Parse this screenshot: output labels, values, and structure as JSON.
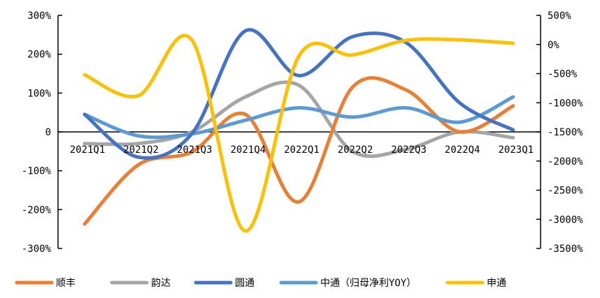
{
  "chart_data": {
    "type": "line",
    "categories": [
      "2021Q1",
      "2021Q2",
      "2021Q3",
      "2021Q4",
      "2022Q1",
      "2022Q2",
      "2022Q3",
      "2022Q4",
      "2023Q1"
    ],
    "left_axis": {
      "ylim": [
        -300,
        300
      ],
      "ticks": [
        300,
        200,
        100,
        0,
        -100,
        -200,
        -300
      ],
      "tick_labels": [
        "300%",
        "200%",
        "100%",
        "0",
        "-100%",
        "-200%",
        "-300%"
      ]
    },
    "right_axis": {
      "ylim": [
        -3500,
        500
      ],
      "ticks": [
        500,
        0,
        -500,
        -1000,
        -1500,
        -2000,
        -2500,
        -3000,
        -3500
      ],
      "tick_labels": [
        "500%",
        "0%",
        "-500%",
        "-1000%",
        "-1500%",
        "-2000%",
        "-2500%",
        "-3000%",
        "-3500%"
      ]
    },
    "series": [
      {
        "name": "顺丰",
        "axis": "left",
        "color": "#ED7D31",
        "values": [
          -237,
          -85,
          -52,
          45,
          -180,
          115,
          108,
          0,
          67
        ]
      },
      {
        "name": "韵达",
        "axis": "left",
        "color": "#A5A5A5",
        "values": [
          -30,
          -30,
          0,
          90,
          120,
          -50,
          -45,
          0,
          -15
        ]
      },
      {
        "name": "圆通",
        "axis": "left",
        "color": "#4472C4",
        "values": [
          45,
          -65,
          -5,
          260,
          145,
          245,
          230,
          75,
          5
        ]
      },
      {
        "name": "中通（归母净利YOY）",
        "axis": "left",
        "color": "#5B9BD5",
        "values": [
          45,
          -10,
          -5,
          30,
          62,
          38,
          62,
          25,
          90
        ]
      },
      {
        "name": "申通",
        "axis": "right",
        "color": "#FFC000",
        "values": [
          -520,
          -880,
          80,
          -3200,
          -200,
          -180,
          70,
          80,
          20
        ]
      }
    ],
    "legend_position": "bottom",
    "grid": false
  }
}
